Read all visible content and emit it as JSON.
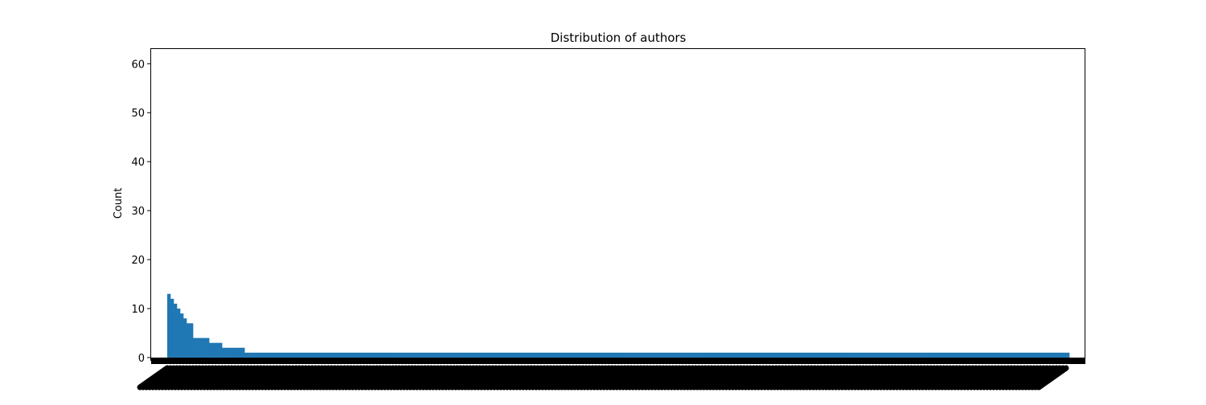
{
  "chart_data": {
    "type": "bar",
    "title": "Distribution of authors",
    "xlabel": "",
    "ylabel": "Count",
    "ylim": [
      -0.5,
      63
    ],
    "yticks": [
      0,
      10,
      20,
      30,
      40,
      50,
      60
    ],
    "grid": false,
    "legend": "none",
    "bar_color": "#1f77b4",
    "tick_label_color": "#000000",
    "values": [
      13,
      12,
      11,
      10,
      9,
      8,
      7,
      7,
      4,
      4,
      4,
      4,
      4,
      3,
      3,
      3,
      3,
      2,
      2,
      2,
      2,
      2,
      2,
      2,
      1,
      1,
      1,
      1,
      1,
      1,
      1,
      1,
      1,
      1,
      1,
      1,
      1,
      1,
      1,
      1,
      1,
      1,
      1,
      1,
      1,
      1,
      1,
      1,
      1,
      1,
      1,
      1,
      1,
      1,
      1,
      1,
      1,
      1,
      1,
      1,
      1,
      1,
      1,
      1,
      1,
      1,
      1,
      1,
      1,
      1,
      1,
      1,
      1,
      1,
      1,
      1,
      1,
      1,
      1,
      1,
      1,
      1,
      1,
      1,
      1,
      1,
      1,
      1,
      1,
      1,
      1,
      1,
      1,
      1,
      1,
      1,
      1,
      1,
      1,
      1,
      1,
      1,
      1,
      1,
      1,
      1,
      1,
      1,
      1,
      1,
      1,
      1,
      1,
      1,
      1,
      1,
      1,
      1,
      1,
      1,
      1,
      1,
      1,
      1,
      1,
      1,
      1,
      1,
      1,
      1,
      1,
      1,
      1,
      1,
      1,
      1,
      1,
      1,
      1,
      1,
      1,
      1,
      1,
      1,
      1,
      1,
      1,
      1,
      1,
      1,
      1,
      1,
      1,
      1,
      1,
      1,
      1,
      1,
      1,
      1,
      1,
      1,
      1,
      1,
      1,
      1,
      1,
      1,
      1,
      1,
      1,
      1,
      1,
      1,
      1,
      1,
      1,
      1,
      1,
      1,
      1,
      1,
      1,
      1,
      1,
      1,
      1,
      1,
      1,
      1,
      1,
      1,
      1,
      1,
      1,
      1,
      1,
      1,
      1,
      1,
      1,
      1,
      1,
      1,
      1,
      1,
      1,
      1,
      1,
      1,
      1,
      1,
      1,
      1,
      1,
      1,
      1,
      1,
      1,
      1,
      1,
      1,
      1,
      1,
      1,
      1,
      1,
      1,
      1,
      1,
      1,
      1,
      1,
      1,
      1,
      1,
      1,
      1,
      1,
      1,
      1,
      1,
      1,
      1,
      1,
      1,
      1,
      1,
      1,
      1,
      1,
      1,
      1,
      1,
      1,
      1,
      1,
      1,
      1,
      1,
      1,
      1,
      1,
      1,
      1,
      1,
      1,
      1,
      1,
      1,
      1,
      1,
      1,
      1,
      1,
      1,
      1,
      1,
      1,
      1
    ]
  }
}
